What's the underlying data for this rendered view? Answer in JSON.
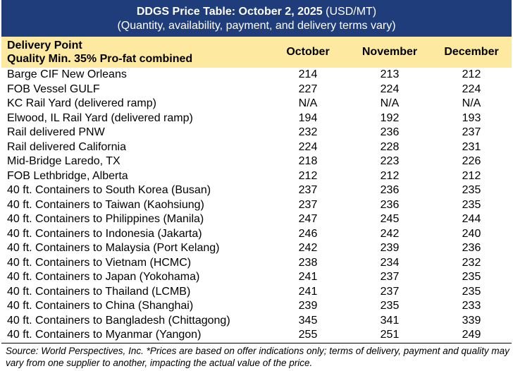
{
  "title": {
    "bold": "DDGS Price Table: October 2, 2025",
    "unit": " (USD/MT)",
    "subtitle": "(Quantity, availability, payment, and delivery terms vary)"
  },
  "header": {
    "point_line1": "Delivery Point",
    "point_line2": "Quality Min. 35% Pro-fat combined",
    "months": [
      "October",
      "November",
      "December"
    ]
  },
  "rows": [
    {
      "point": "Barge CIF New Orleans",
      "oct": "214",
      "nov": "213",
      "dec": "212"
    },
    {
      "point": "FOB Vessel GULF",
      "oct": "227",
      "nov": "224",
      "dec": "224"
    },
    {
      "point": "KC Rail Yard (delivered ramp)",
      "oct": "N/A",
      "nov": "N/A",
      "dec": "N/A"
    },
    {
      "point": "Elwood, IL Rail Yard (delivered ramp)",
      "oct": "194",
      "nov": "192",
      "dec": "193"
    },
    {
      "point": "Rail delivered PNW",
      "oct": "232",
      "nov": "236",
      "dec": "237"
    },
    {
      "point": "Rail delivered California",
      "oct": "224",
      "nov": "228",
      "dec": "231"
    },
    {
      "point": "Mid-Bridge Laredo, TX",
      "oct": "218",
      "nov": "223",
      "dec": "226"
    },
    {
      "point": "FOB Lethbridge, Alberta",
      "oct": "212",
      "nov": "212",
      "dec": "212"
    },
    {
      "point": "40 ft. Containers to South Korea (Busan)",
      "oct": "237",
      "nov": "236",
      "dec": "235"
    },
    {
      "point": "40 ft. Containers to Taiwan (Kaohsiung)",
      "oct": "237",
      "nov": "236",
      "dec": "235"
    },
    {
      "point": "40 ft. Containers to Philippines (Manila)",
      "oct": "247",
      "nov": "245",
      "dec": "244"
    },
    {
      "point": "40 ft. Containers to Indonesia (Jakarta)",
      "oct": "246",
      "nov": "242",
      "dec": "240"
    },
    {
      "point": "40 ft. Containers to Malaysia (Port Kelang)",
      "oct": "242",
      "nov": "239",
      "dec": "236"
    },
    {
      "point": "40 ft. Containers to Vietnam (HCMC)",
      "oct": "238",
      "nov": "234",
      "dec": "232"
    },
    {
      "point": "40 ft. Containers to Japan (Yokohama)",
      "oct": "241",
      "nov": "237",
      "dec": "235"
    },
    {
      "point": "40 ft. Containers to Thailand (LCMB)",
      "oct": "241",
      "nov": "237",
      "dec": "235"
    },
    {
      "point": "40 ft. Containers to China (Shanghai)",
      "oct": "239",
      "nov": "235",
      "dec": "233"
    },
    {
      "point": "40 ft. Containers to Bangladesh (Chittagong)",
      "oct": "345",
      "nov": "341",
      "dec": "339"
    },
    {
      "point": "40 ft. Containers to Myanmar (Yangon)",
      "oct": "255",
      "nov": "251",
      "dec": "249"
    }
  ],
  "footer": "Source: World Perspectives, Inc. *Prices are based on offer indications only; terms of delivery, payment and quality may vary from one supplier to another, impacting the actual value of the price.",
  "colors": {
    "title_bg": "#1f3d7a",
    "header_bg": "#fde9a0"
  }
}
